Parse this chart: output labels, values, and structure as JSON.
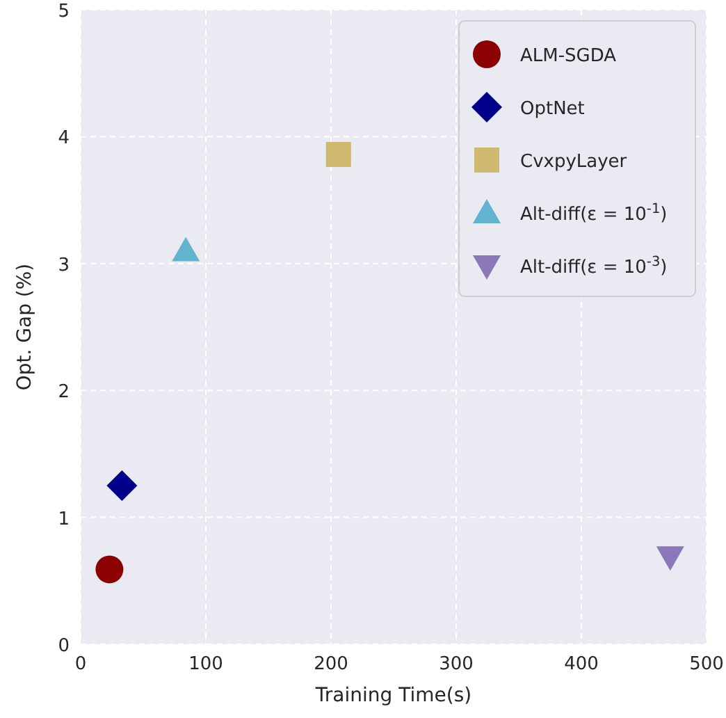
{
  "chart_data": {
    "type": "scatter",
    "xlabel": "Training Time(s)",
    "ylabel": "Opt. Gap (%)",
    "xlim": [
      0,
      500
    ],
    "ylim": [
      0,
      5
    ],
    "xticks": [
      0,
      100,
      200,
      300,
      400,
      500
    ],
    "yticks": [
      0,
      1,
      2,
      3,
      4,
      5
    ],
    "grid": true,
    "legend": "top right",
    "series": [
      {
        "name": "ALM-SGDA",
        "color": "#8b0000",
        "marker": "circle",
        "x": [
          23
        ],
        "values": [
          0.59
        ]
      },
      {
        "name": "OptNet",
        "color": "#00008b",
        "marker": "diamond",
        "x": [
          33
        ],
        "values": [
          1.25
        ]
      },
      {
        "name": "CvxpyLayer",
        "color": "#cfb870",
        "marker": "square",
        "x": [
          206
        ],
        "values": [
          3.86
        ]
      },
      {
        "name": "Alt-diff(ε = 10$^{-1}$)",
        "color": "#62b3d0",
        "marker": "triangle",
        "x": [
          84
        ],
        "values": [
          3.1
        ]
      },
      {
        "name": "Alt-diff(ε = 10$^{-3}$)",
        "color": "#8a78b8",
        "marker": "triangle-down",
        "x": [
          471
        ],
        "values": [
          0.69
        ]
      }
    ]
  }
}
